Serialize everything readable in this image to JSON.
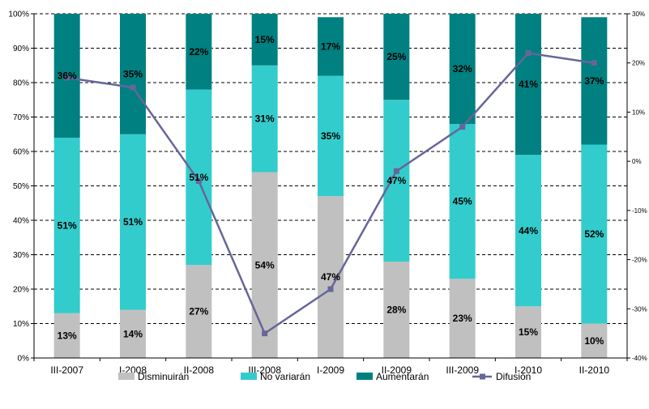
{
  "chart_data": {
    "type": "bar",
    "stacked": true,
    "percent_stacked": true,
    "categories": [
      "III-2007",
      "I-2008",
      "II-2008",
      "III-2008",
      "I-2009",
      "II-2009",
      "III-2009",
      "I-2010",
      "II-2010"
    ],
    "series": [
      {
        "name": "Disminuirán",
        "color": "#c0c0c0",
        "values": [
          13,
          14,
          27,
          54,
          47,
          28,
          23,
          15,
          10
        ],
        "labels": [
          "13%",
          "14%",
          "27%",
          "54%",
          "47%",
          "28%",
          "23%",
          "15%",
          "10%"
        ]
      },
      {
        "name": "No variarán",
        "color": "#33cccc",
        "values": [
          51,
          51,
          51,
          31,
          35,
          47,
          45,
          44,
          52
        ],
        "labels": [
          "51%",
          "51%",
          "51%",
          "31%",
          "35%",
          "47%",
          "45%",
          "44%",
          "52%"
        ]
      },
      {
        "name": "Aumentarán",
        "color": "#008080",
        "values": [
          36,
          35,
          22,
          15,
          17,
          25,
          32,
          41,
          37
        ],
        "labels": [
          "36%",
          "35%",
          "22%",
          "15%",
          "17%",
          "25%",
          "32%",
          "41%",
          "37%"
        ]
      }
    ],
    "line_series": {
      "name": "Difusión",
      "color": "#666699",
      "axis": "right",
      "values": [
        17,
        15,
        -4,
        -35,
        -26,
        -2,
        7,
        22,
        20
      ]
    },
    "y_left": {
      "ylim": [
        0,
        100
      ],
      "ticks": [
        0,
        10,
        20,
        30,
        40,
        50,
        60,
        70,
        80,
        90,
        100
      ],
      "tick_labels": [
        "0%",
        "10%",
        "20%",
        "30%",
        "40%",
        "50%",
        "60%",
        "70%",
        "80%",
        "90%",
        "100%"
      ]
    },
    "y_right": {
      "ylim": [
        -40,
        30
      ],
      "ticks": [
        -40,
        -30,
        -20,
        -10,
        0,
        10,
        20,
        30
      ],
      "tick_labels": [
        "-40%",
        "-30%",
        "-20%",
        "-10%",
        "0%",
        "10%",
        "20%",
        "30%"
      ]
    },
    "grid": true,
    "legend": "bottom"
  }
}
